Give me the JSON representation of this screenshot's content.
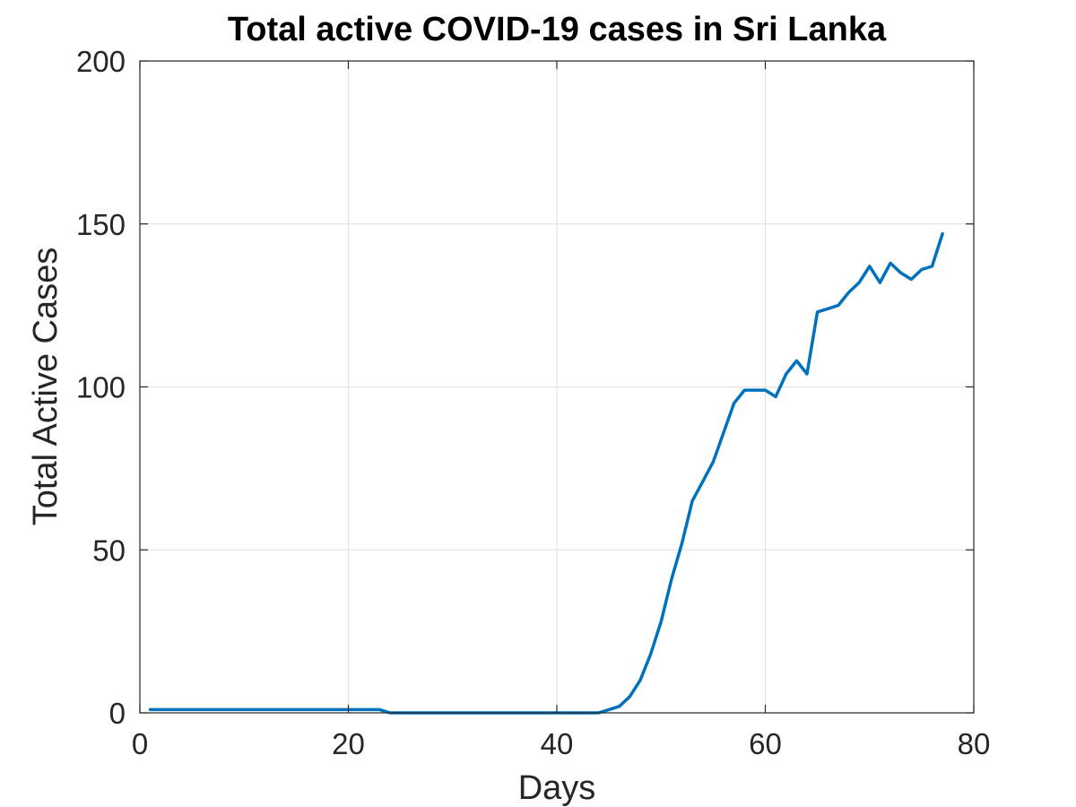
{
  "chart_data": {
    "type": "line",
    "title": "Total active COVID-19 cases in Sri Lanka",
    "xlabel": "Days",
    "ylabel": "Total Active Cases",
    "xlim": [
      0,
      80
    ],
    "ylim": [
      0,
      200
    ],
    "xticks": [
      0,
      20,
      40,
      60,
      80
    ],
    "yticks": [
      0,
      50,
      100,
      150,
      200
    ],
    "grid": true,
    "series": [
      {
        "color": "#0072BD",
        "x": [
          1,
          2,
          3,
          4,
          5,
          6,
          7,
          8,
          9,
          10,
          11,
          12,
          13,
          14,
          15,
          16,
          17,
          18,
          19,
          20,
          21,
          22,
          23,
          24,
          25,
          26,
          27,
          28,
          29,
          30,
          31,
          32,
          33,
          34,
          35,
          36,
          37,
          38,
          39,
          40,
          41,
          42,
          43,
          44,
          45,
          46,
          47,
          48,
          49,
          50,
          51,
          52,
          53,
          54,
          55,
          56,
          57,
          58,
          59,
          60,
          61,
          62,
          63,
          64,
          65,
          66,
          67,
          68,
          69,
          70,
          71,
          72,
          73,
          74,
          75,
          76,
          77
        ],
        "y": [
          1,
          1,
          1,
          1,
          1,
          1,
          1,
          1,
          1,
          1,
          1,
          1,
          1,
          1,
          1,
          1,
          1,
          1,
          1,
          1,
          1,
          1,
          1,
          0,
          0,
          0,
          0,
          0,
          0,
          0,
          0,
          0,
          0,
          0,
          0,
          0,
          0,
          0,
          0,
          0,
          0,
          0,
          0,
          0,
          1,
          2,
          5,
          10,
          18,
          28,
          41,
          52,
          65,
          71,
          77,
          86,
          95,
          99,
          99,
          99,
          97,
          104,
          108,
          104,
          123,
          124,
          125,
          129,
          132,
          137,
          132,
          138,
          135,
          133,
          136,
          137,
          147
        ]
      }
    ]
  }
}
